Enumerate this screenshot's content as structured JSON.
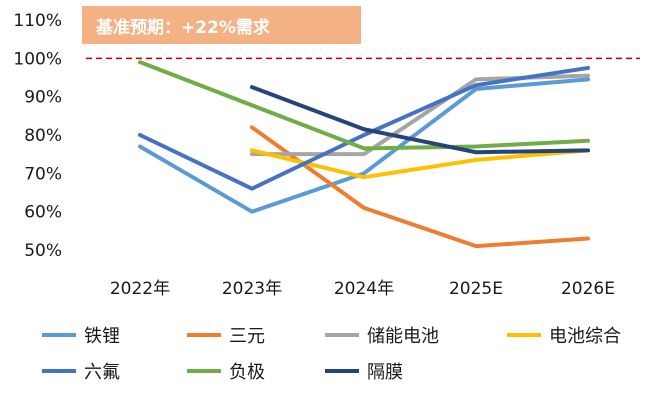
{
  "chart_data": {
    "type": "line",
    "annotation": "基准预期：+22%需求",
    "reference_line": {
      "value": 100,
      "color": "#c00000",
      "style": "dashed"
    },
    "categories": [
      "2022年",
      "2023年",
      "2024年",
      "2025E",
      "2026E"
    ],
    "y_ticks": [
      "110%",
      "100%",
      "90%",
      "80%",
      "70%",
      "60%",
      "50%"
    ],
    "ylim": [
      50,
      110
    ],
    "legend_position": "bottom",
    "series": [
      {
        "name": "铁锂",
        "color": "#5b9bd5",
        "values": [
          77,
          60,
          70,
          92,
          94.5
        ]
      },
      {
        "name": "三元",
        "color": "#ed7d31",
        "values": [
          null,
          82,
          61,
          51,
          53
        ]
      },
      {
        "name": "储能电池",
        "color": "#a5a5a5",
        "values": [
          null,
          75,
          75,
          94.5,
          95.5
        ]
      },
      {
        "name": "电池综合",
        "color": "#ffc000",
        "values": [
          null,
          76,
          69,
          73.5,
          76
        ]
      },
      {
        "name": "六氟",
        "color": "#4472c4",
        "values": [
          80,
          66,
          80,
          93,
          97.5
        ]
      },
      {
        "name": "负极",
        "color": "#70ad47",
        "values": [
          99,
          null,
          76.5,
          77,
          78.5
        ]
      },
      {
        "name": "隔膜",
        "color": "#264478",
        "values": [
          null,
          92.5,
          81.5,
          75.5,
          76
        ]
      }
    ]
  }
}
